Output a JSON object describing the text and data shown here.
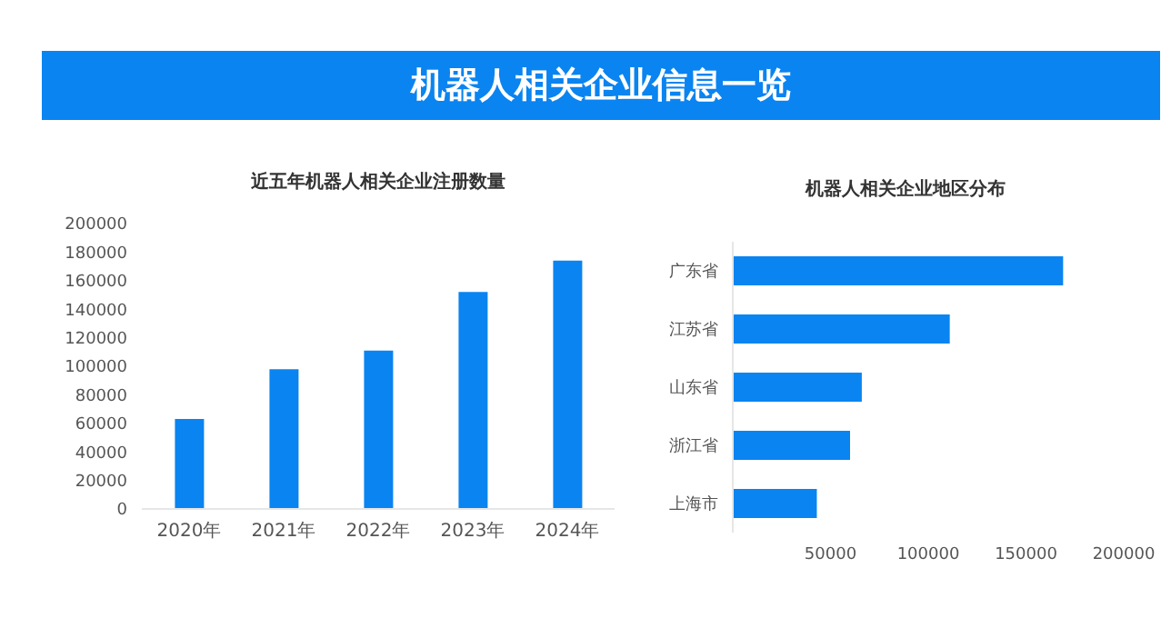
{
  "chart_data": [
    {
      "type": "other",
      "title": "机器人相关企业信息一览"
    },
    {
      "type": "bar",
      "title": "近五年机器人相关企业注册数量",
      "categories": [
        "2020年",
        "2021年",
        "2022年",
        "2023年",
        "2024年"
      ],
      "values": [
        63000,
        98000,
        111000,
        152000,
        174000
      ],
      "color": "#0a84f0",
      "ylim": [
        0,
        200000
      ],
      "yticks": [
        0,
        20000,
        40000,
        60000,
        80000,
        100000,
        120000,
        140000,
        160000,
        180000,
        200000
      ]
    },
    {
      "type": "bar",
      "orientation": "horizontal",
      "title": "机器人相关企业地区分布",
      "categories": [
        "广东省",
        "江苏省",
        "山东省",
        "浙江省",
        "上海市"
      ],
      "values": [
        169000,
        111000,
        66000,
        60000,
        43000
      ],
      "color": "#0a84f0",
      "xlim": [
        0,
        200000
      ],
      "xticks": [
        50000,
        100000,
        150000,
        200000
      ]
    }
  ]
}
